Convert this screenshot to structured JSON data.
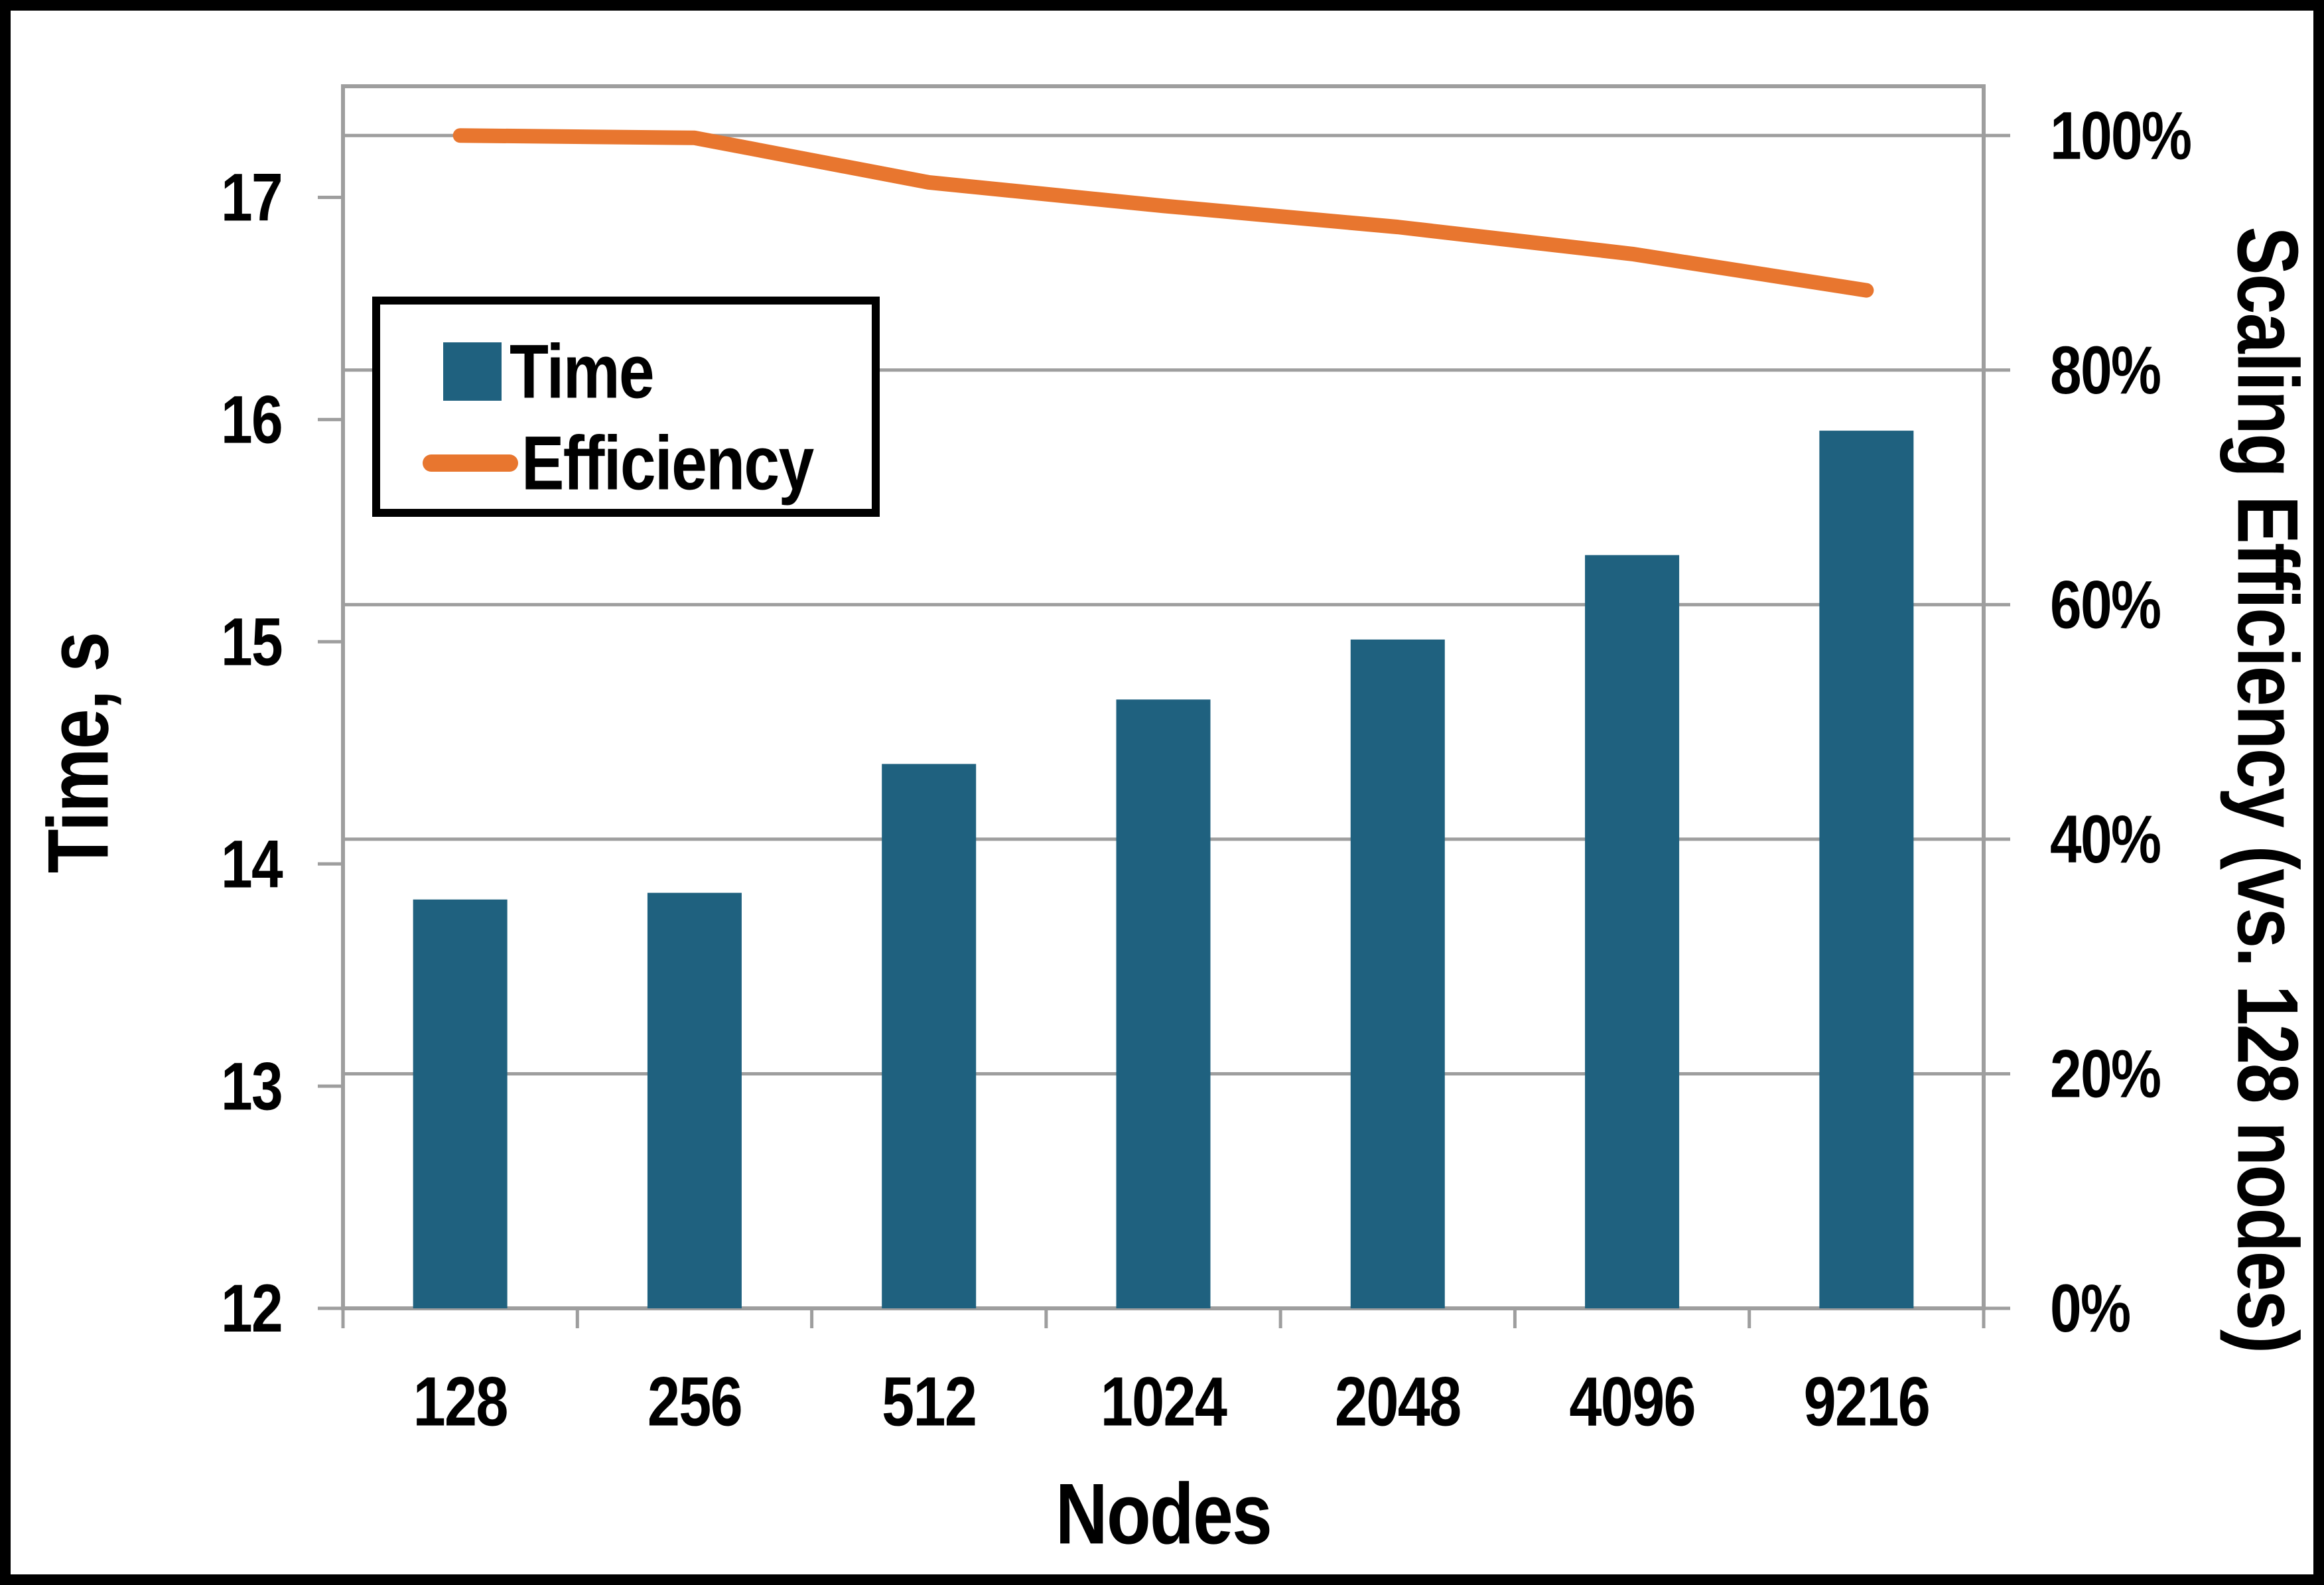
{
  "chart_data": {
    "type": "bar+line",
    "title": "",
    "xlabel": "Nodes",
    "ylabel_left": "Time, s",
    "ylabel_right": "Scaling Efficiency (vs. 128 nodes)",
    "categories": [
      "128",
      "256",
      "512",
      "1024",
      "2048",
      "4096",
      "9216"
    ],
    "series": [
      {
        "name": "Time",
        "type": "bar",
        "axis": "left",
        "unit": "s",
        "color": "#1F617F",
        "values": [
          13.84,
          13.87,
          14.45,
          14.74,
          15.01,
          15.39,
          15.95
        ]
      },
      {
        "name": "Efficiency",
        "type": "line",
        "axis": "right",
        "unit": "%",
        "color": "#E8762F",
        "values": [
          100,
          99.8,
          96.0,
          94.0,
          92.2,
          89.9,
          86.8
        ]
      }
    ],
    "left_axis": {
      "min": 12,
      "max": 17.5,
      "tick_values": [
        12,
        13,
        14,
        15,
        16,
        17
      ],
      "tick_labels": [
        "12",
        "13",
        "14",
        "15",
        "16",
        "17"
      ]
    },
    "right_axis": {
      "min": 0,
      "max": 104.2,
      "tick_values": [
        0,
        20,
        40,
        60,
        80,
        100
      ],
      "tick_labels": [
        "0%",
        "20%",
        "40%",
        "60%",
        "80%",
        "100%"
      ]
    },
    "legend": {
      "position": "upper-left-inside",
      "items": [
        {
          "label": "Time",
          "swatch": "square",
          "color": "#1F617F"
        },
        {
          "label": "Efficiency",
          "swatch": "line",
          "color": "#E8762F"
        }
      ]
    },
    "grid": "horizontal",
    "gridline_color": "#9E9E9E",
    "plot_border_color": "#9E9E9E",
    "background": "#FFFFFF",
    "frame_color": "#000000"
  }
}
